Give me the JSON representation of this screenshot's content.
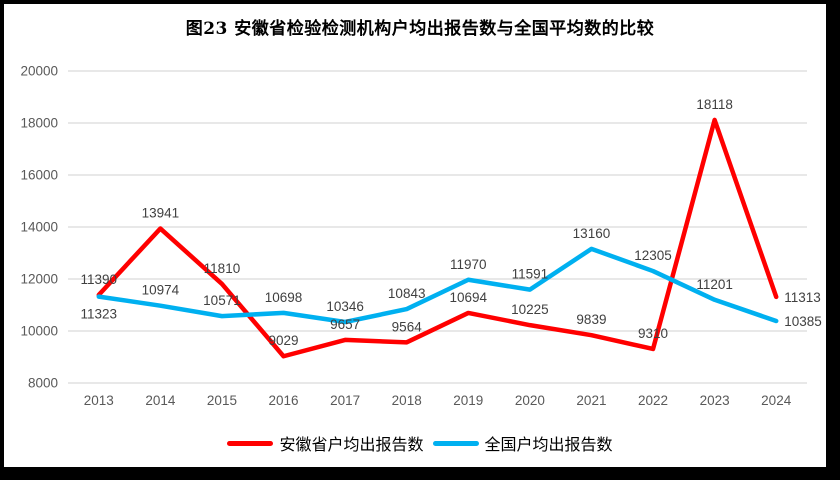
{
  "chart_data": {
    "type": "line",
    "title": "图23 安徽省检验检测机构户均出报告数与全国平均数的比较",
    "categories": [
      "2013",
      "2014",
      "2015",
      "2016",
      "2017",
      "2018",
      "2019",
      "2020",
      "2021",
      "2022",
      "2023",
      "2024"
    ],
    "series": [
      {
        "name": "安徽省户均出报告数",
        "color": "#FF0000",
        "values": [
          11390,
          13941,
          11810,
          9029,
          9657,
          9564,
          10694,
          10225,
          9839,
          9310,
          18118,
          11313
        ],
        "label_positions": [
          "above",
          "above",
          "above",
          "above",
          "above",
          "above",
          "above",
          "above",
          "above",
          "above",
          "above",
          "right"
        ]
      },
      {
        "name": "全国户均出报告数",
        "color": "#00B0F0",
        "values": [
          11323,
          10974,
          10571,
          10698,
          10346,
          10843,
          11970,
          11591,
          13160,
          12305,
          11201,
          10385
        ],
        "label_positions": [
          "below",
          "above",
          "above",
          "above",
          "above",
          "above",
          "above",
          "above",
          "above",
          "above",
          "above",
          "right"
        ]
      }
    ],
    "ylim": [
      8000,
      20000
    ],
    "y_ticks": [
      8000,
      10000,
      12000,
      14000,
      16000,
      18000,
      20000
    ],
    "grid": "horizontal-only",
    "legend_position": "bottom",
    "data_labels_shown": true,
    "colors": {
      "gridline": "#D9D9D9",
      "axis_text": "#595959",
      "data_label_text": "#404040",
      "frame_border": "#000000",
      "background": "#FFFFFF"
    }
  }
}
